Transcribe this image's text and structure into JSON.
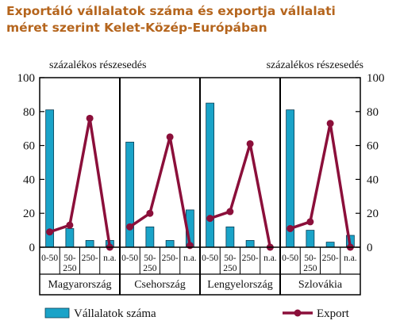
{
  "title_line1": "Exportáló vállalatok száma és exportja vállalati",
  "title_line2": "méret szerint Kelet-Közép-Európában",
  "left_axis_label": "százalékos részesedés",
  "right_axis_label": "százalékos részesedés",
  "colors": {
    "bar": "#1aa3c8",
    "bar_stroke": "#0a3f55",
    "line": "#8b0f3a",
    "title": "#b5651d"
  },
  "chart_data": {
    "type": "bar+line",
    "ylim": [
      0,
      100
    ],
    "yticks": [
      0,
      20,
      40,
      60,
      80,
      100
    ],
    "size_categories": [
      "0-50",
      "50-250",
      "250-",
      "n.a."
    ],
    "size_tick_labels": [
      [
        "0-50"
      ],
      [
        "50-",
        "250"
      ],
      [
        "250-"
      ],
      [
        "n.a."
      ]
    ],
    "countries": [
      "Magyarország",
      "Csehország",
      "Lengyelország",
      "Szlovákia"
    ],
    "series": [
      {
        "name": "Vállalatok száma",
        "kind": "bar",
        "values": [
          [
            81,
            11,
            4,
            4
          ],
          [
            62,
            12,
            4,
            22
          ],
          [
            85,
            12,
            4,
            0
          ],
          [
            81,
            10,
            3,
            7
          ]
        ]
      },
      {
        "name": "Export",
        "kind": "line",
        "values": [
          [
            9,
            13,
            76,
            0
          ],
          [
            12,
            20,
            65,
            1
          ],
          [
            17,
            21,
            61,
            0
          ],
          [
            11,
            15,
            73,
            0
          ]
        ]
      }
    ],
    "legend_position": "bottom"
  }
}
